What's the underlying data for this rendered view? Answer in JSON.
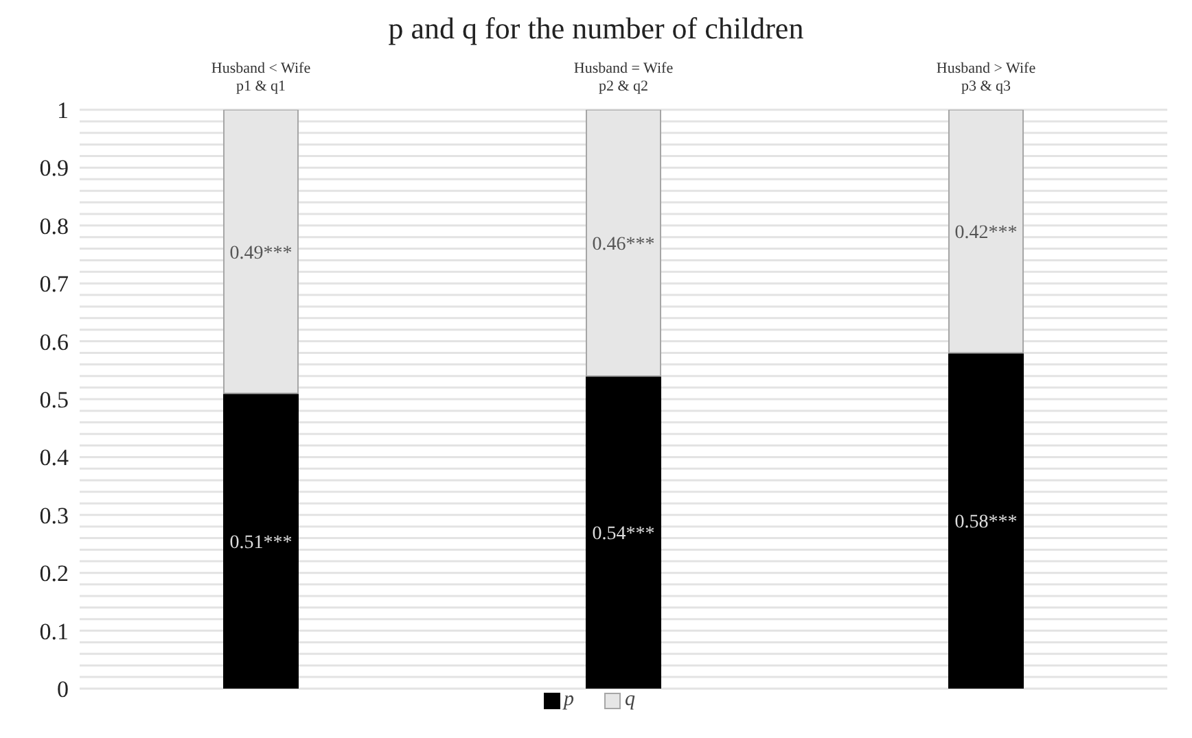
{
  "chart_data": {
    "type": "bar",
    "title": "p and q for the number of children",
    "categories": [
      "Husband < Wife\np1 & q1",
      "Husband = Wife\np2 & q2",
      "Husband > Wife\np3 & q3"
    ],
    "stacked": true,
    "series": [
      {
        "name": "p",
        "color": "#000000",
        "values": [
          0.51,
          0.54,
          0.58
        ],
        "value_labels": [
          "0.51***",
          "0.54***",
          "0.58***"
        ]
      },
      {
        "name": "q",
        "color": "#e6e6e6",
        "values": [
          0.49,
          0.46,
          0.42
        ],
        "value_labels": [
          "0.49***",
          "0.46***",
          "0.42***"
        ]
      }
    ],
    "ylim": [
      0,
      1
    ],
    "yticks": [
      0,
      {
        "value": 0.02,
        "label": null
      },
      {
        "value": 0.04,
        "label": null
      },
      {
        "value": 0.06,
        "label": null
      },
      {
        "value": 0.08,
        "label": null
      },
      0.1,
      {
        "value": 0.12,
        "label": null
      },
      {
        "value": 0.14,
        "label": null
      },
      {
        "value": 0.16,
        "label": null
      },
      {
        "value": 0.18,
        "label": null
      },
      0.2,
      {
        "value": 0.22,
        "label": null
      },
      {
        "value": 0.24,
        "label": null
      },
      {
        "value": 0.26,
        "label": null
      },
      {
        "value": 0.28,
        "label": null
      },
      0.3,
      {
        "value": 0.32,
        "label": null
      },
      {
        "value": 0.34,
        "label": null
      },
      {
        "value": 0.36,
        "label": null
      },
      {
        "value": 0.38,
        "label": null
      },
      0.4,
      {
        "value": 0.42,
        "label": null
      },
      {
        "value": 0.44,
        "label": null
      },
      {
        "value": 0.46,
        "label": null
      },
      {
        "value": 0.48,
        "label": null
      },
      0.5,
      {
        "value": 0.52,
        "label": null
      },
      {
        "value": 0.54,
        "label": null
      },
      {
        "value": 0.56,
        "label": null
      },
      {
        "value": 0.58,
        "label": null
      },
      0.6,
      {
        "value": 0.62,
        "label": null
      },
      {
        "value": 0.64,
        "label": null
      },
      {
        "value": 0.66,
        "label": null
      },
      {
        "value": 0.68,
        "label": null
      },
      0.7,
      {
        "value": 0.72,
        "label": null
      },
      {
        "value": 0.74,
        "label": null
      },
      {
        "value": 0.76,
        "label": null
      },
      {
        "value": 0.78,
        "label": null
      },
      0.8,
      {
        "value": 0.82,
        "label": null
      },
      {
        "value": 0.84,
        "label": null
      },
      {
        "value": 0.86,
        "label": null
      },
      {
        "value": 0.88,
        "label": null
      },
      0.9,
      {
        "value": 0.92,
        "label": null
      },
      {
        "value": 0.94,
        "label": null
      },
      {
        "value": 0.96,
        "label": null
      },
      {
        "value": 0.98,
        "label": null
      },
      1
    ],
    "grid": "y",
    "legend": "bottom"
  }
}
